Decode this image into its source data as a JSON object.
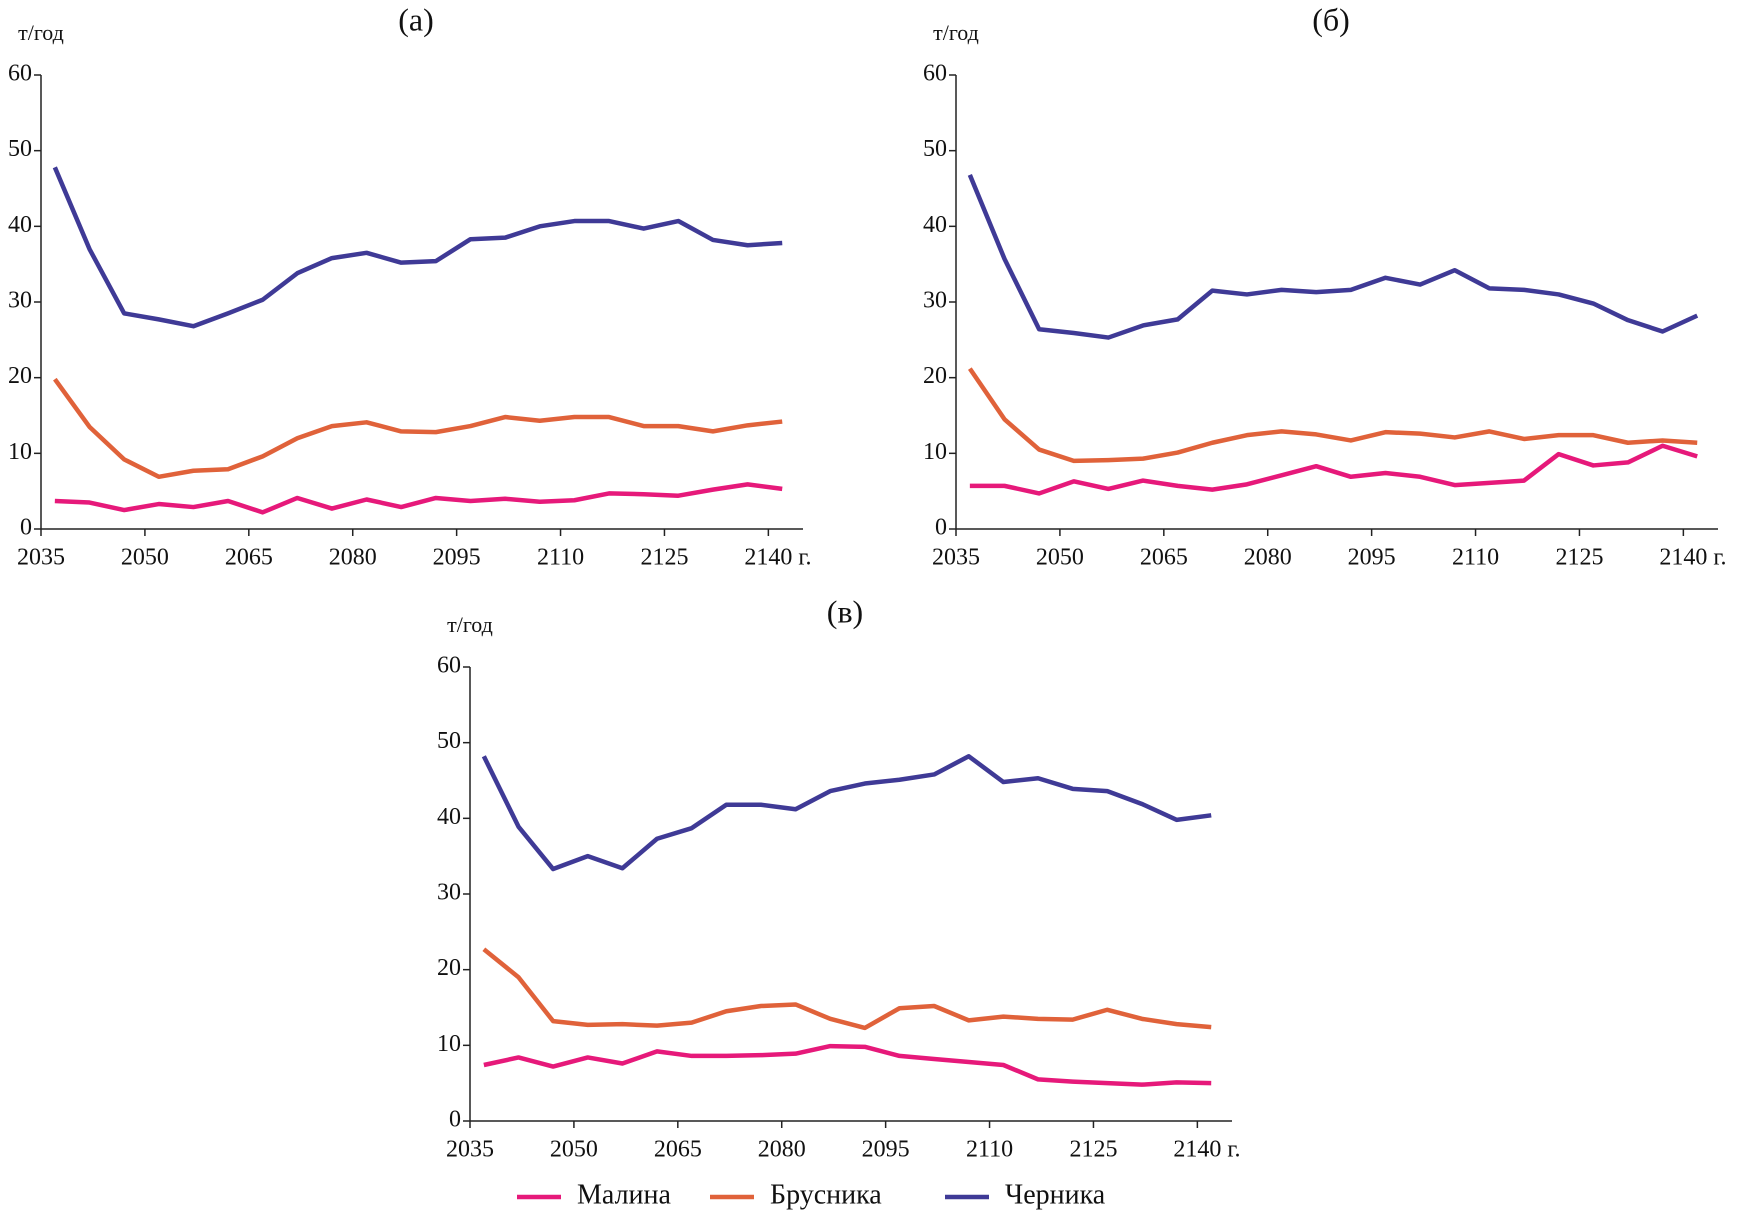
{
  "chart_data": [
    {
      "type": "line",
      "title": "(а)",
      "y_label": "т/год",
      "x_label": "г.",
      "x": [
        2037,
        2042,
        2047,
        2052,
        2057,
        2062,
        2067,
        2072,
        2077,
        2082,
        2087,
        2092,
        2097,
        2102,
        2107,
        2112,
        2117,
        2122,
        2127,
        2132,
        2137,
        2142
      ],
      "xlim": [
        2035,
        2145
      ],
      "xticks": [
        2035,
        2050,
        2065,
        2080,
        2095,
        2110,
        2125,
        2140
      ],
      "ylim": [
        0,
        60
      ],
      "yticks": [
        0,
        10,
        20,
        30,
        40,
        50,
        60
      ],
      "series": [
        {
          "name": "Малина",
          "color": "#e6197a",
          "values": [
            3.7,
            3.5,
            2.5,
            3.3,
            2.9,
            3.7,
            2.2,
            4.1,
            2.7,
            3.9,
            2.9,
            4.1,
            3.7,
            4.0,
            3.6,
            3.8,
            4.7,
            4.6,
            4.4,
            5.2,
            5.9,
            5.3
          ]
        },
        {
          "name": "Брусника",
          "color": "#e0623a",
          "values": [
            19.8,
            13.5,
            9.2,
            6.9,
            7.7,
            7.9,
            9.6,
            12,
            13.6,
            14.1,
            12.9,
            12.8,
            13.6,
            14.8,
            14.3,
            14.8,
            14.8,
            13.6,
            13.6,
            12.9,
            13.7,
            14.2
          ]
        },
        {
          "name": "Черника",
          "color": "#3f3a96",
          "values": [
            47.8,
            37,
            28.5,
            27.7,
            26.8,
            28.5,
            30.3,
            33.8,
            35.8,
            36.5,
            35.2,
            35.4,
            38.3,
            38.5,
            40.0,
            40.7,
            40.7,
            39.7,
            40.7,
            38.2,
            37.5,
            37.8
          ]
        }
      ]
    },
    {
      "type": "line",
      "title": "(б)",
      "y_label": "т/год",
      "x_label": "г.",
      "x": [
        2037,
        2042,
        2047,
        2052,
        2057,
        2062,
        2067,
        2072,
        2077,
        2082,
        2087,
        2092,
        2097,
        2102,
        2107,
        2112,
        2117,
        2122,
        2127,
        2132,
        2137,
        2142
      ],
      "xlim": [
        2035,
        2145
      ],
      "xticks": [
        2035,
        2050,
        2065,
        2080,
        2095,
        2110,
        2125,
        2140
      ],
      "ylim": [
        0,
        60
      ],
      "yticks": [
        0,
        10,
        20,
        30,
        40,
        50,
        60
      ],
      "series": [
        {
          "name": "Малина",
          "color": "#e6197a",
          "values": [
            5.7,
            5.7,
            4.7,
            6.3,
            5.3,
            6.4,
            5.7,
            5.2,
            5.9,
            7.1,
            8.3,
            6.9,
            7.4,
            6.9,
            5.8,
            6.1,
            6.4,
            9.9,
            8.4,
            8.8,
            11.0,
            9.6
          ]
        },
        {
          "name": "Брусника",
          "color": "#e0623a",
          "values": [
            21.2,
            14.5,
            10.5,
            9.0,
            9.1,
            9.3,
            10.1,
            11.4,
            12.4,
            12.9,
            12.5,
            11.7,
            12.8,
            12.6,
            12.1,
            12.9,
            11.9,
            12.4,
            12.4,
            11.4,
            11.7,
            11.4
          ]
        },
        {
          "name": "Черника",
          "color": "#3f3a96",
          "values": [
            46.8,
            35.7,
            26.4,
            25.9,
            25.3,
            26.9,
            27.7,
            31.5,
            31.0,
            31.6,
            31.3,
            31.6,
            33.2,
            32.3,
            34.2,
            31.8,
            31.6,
            31.0,
            29.8,
            27.6,
            26.1,
            28.2
          ]
        }
      ]
    },
    {
      "type": "line",
      "title": "(в)",
      "y_label": "т/год",
      "x_label": "г.",
      "legend": "bottom",
      "x": [
        2037,
        2042,
        2047,
        2052,
        2057,
        2062,
        2067,
        2072,
        2077,
        2082,
        2087,
        2092,
        2097,
        2102,
        2107,
        2112,
        2117,
        2122,
        2127,
        2132,
        2137,
        2142
      ],
      "xlim": [
        2035,
        2145
      ],
      "xticks": [
        2035,
        2050,
        2065,
        2080,
        2095,
        2110,
        2125,
        2140
      ],
      "ylim": [
        0,
        60
      ],
      "yticks": [
        0,
        10,
        20,
        30,
        40,
        50,
        60
      ],
      "series": [
        {
          "name": "Малина",
          "color": "#e6197a",
          "values": [
            7.4,
            8.4,
            7.2,
            8.4,
            7.6,
            9.2,
            8.6,
            8.6,
            8.7,
            8.9,
            9.9,
            9.8,
            8.6,
            8.2,
            7.8,
            7.4,
            5.5,
            5.2,
            5.0,
            4.8,
            5.1,
            5.0
          ]
        },
        {
          "name": "Брусника",
          "color": "#e0623a",
          "values": [
            22.7,
            19.0,
            13.2,
            12.7,
            12.8,
            12.6,
            13.0,
            14.5,
            15.2,
            15.4,
            13.5,
            12.3,
            14.9,
            15.2,
            13.3,
            13.8,
            13.5,
            13.4,
            14.7,
            13.5,
            12.8,
            12.4
          ]
        },
        {
          "name": "Черника",
          "color": "#3f3a96",
          "values": [
            48.2,
            38.9,
            33.3,
            35.0,
            33.4,
            37.3,
            38.7,
            41.8,
            41.8,
            41.2,
            43.6,
            44.6,
            45.1,
            45.8,
            48.2,
            44.8,
            45.3,
            43.9,
            43.6,
            41.9,
            39.8,
            40.4
          ]
        }
      ]
    }
  ]
}
